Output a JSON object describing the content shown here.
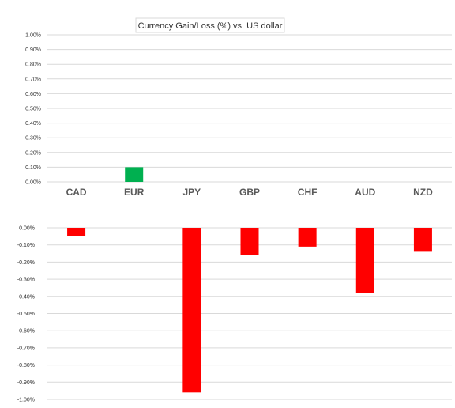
{
  "chart_data": {
    "type": "bar",
    "title": "Currency  Gain/Loss (%) vs. US dollar",
    "categories": [
      "CAD",
      "EUR",
      "JPY",
      "GBP",
      "CHF",
      "AUD",
      "NZD"
    ],
    "values": [
      -0.05,
      0.1,
      -0.96,
      -0.16,
      -0.11,
      -0.38,
      -0.14
    ],
    "positive_axis": {
      "range": [
        0.0,
        1.0
      ],
      "tick_labels": [
        "1.00%",
        "0.90%",
        "0.80%",
        "0.70%",
        "0.60%",
        "0.50%",
        "0.40%",
        "0.30%",
        "0.20%",
        "0.10%",
        "0.00%"
      ]
    },
    "negative_axis": {
      "range": [
        -1.0,
        0.0
      ],
      "tick_labels": [
        "0.00%",
        "-0.10%",
        "-0.20%",
        "-0.30%",
        "-0.40%",
        "-0.50%",
        "-0.60%",
        "-0.70%",
        "-0.80%",
        "-0.90%",
        "-1.00%"
      ]
    },
    "grid": true,
    "colors": {
      "positive": "#00b050",
      "negative": "#ff0000",
      "grid": "#d9d9d9"
    }
  }
}
